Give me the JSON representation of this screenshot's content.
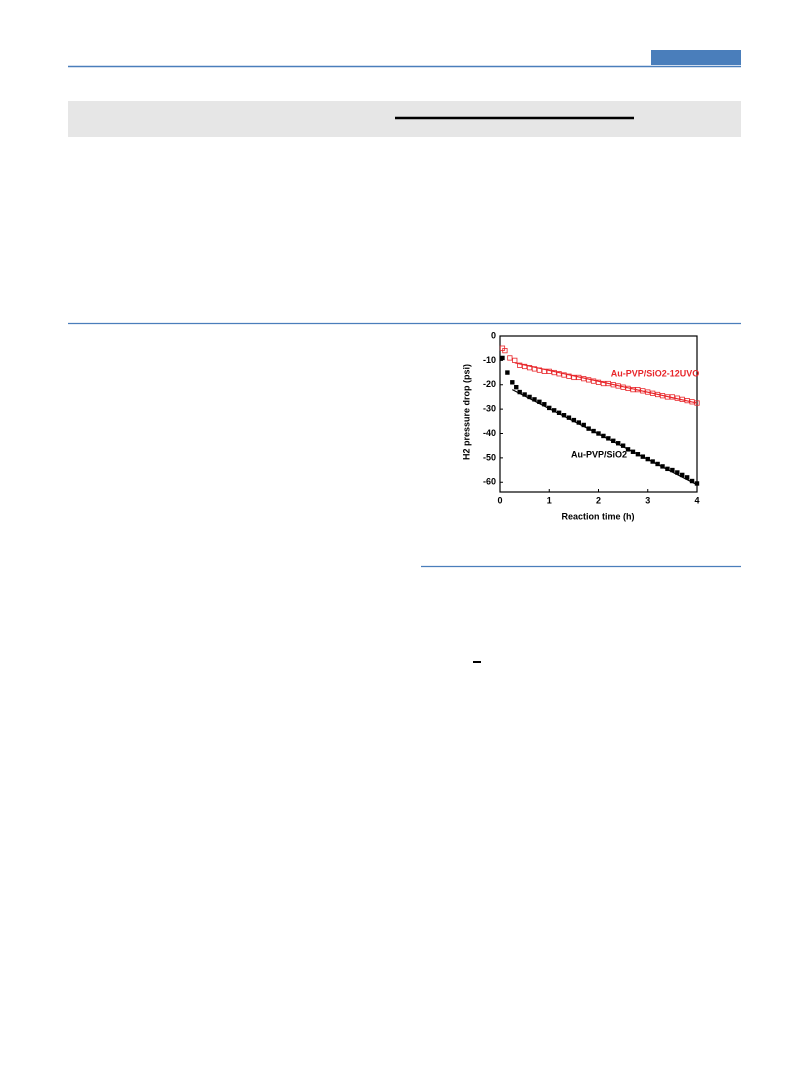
{
  "chart_data": {
    "type": "scatter",
    "xlabel": "Reaction time (h)",
    "ylabel": "H2 pressure drop (psi)",
    "xlim": [
      0,
      4
    ],
    "xticks": [
      0,
      1,
      2,
      3,
      4
    ],
    "ylim": [
      -64,
      0
    ],
    "yticks": [
      0,
      -10,
      -20,
      -30,
      -40,
      -50,
      -60
    ],
    "series": [
      {
        "name": "Au-PVP/SiO2-12UVO",
        "color": "#e8262a",
        "marker": "open-square",
        "x": [
          0.05,
          0.1,
          0.2,
          0.3,
          0.4,
          0.5,
          0.6,
          0.7,
          0.8,
          0.9,
          1.0,
          1.1,
          1.2,
          1.3,
          1.4,
          1.5,
          1.6,
          1.7,
          1.8,
          1.9,
          2.0,
          2.1,
          2.2,
          2.3,
          2.4,
          2.5,
          2.6,
          2.7,
          2.8,
          2.9,
          3.0,
          3.1,
          3.2,
          3.3,
          3.4,
          3.5,
          3.6,
          3.7,
          3.8,
          3.9,
          4.0
        ],
        "values": [
          -5,
          -6,
          -9,
          -10,
          -12,
          -12.5,
          -13,
          -13.5,
          -14,
          -14.5,
          -14.5,
          -15,
          -15.5,
          -16,
          -16.5,
          -17,
          -17,
          -17.5,
          -18,
          -18.5,
          -19,
          -19.5,
          -19.5,
          -20,
          -20.5,
          -21,
          -21.5,
          -22,
          -22,
          -22.5,
          -23,
          -23.5,
          -24,
          -24.5,
          -25,
          -25,
          -25.5,
          -26,
          -26.5,
          -27,
          -27.5
        ],
        "fit_x": [
          0.3,
          4.0
        ],
        "fit_values": [
          -11,
          -27.5
        ]
      },
      {
        "name": "Au-PVP/SiO2",
        "color": "#000000",
        "marker": "filled-square",
        "x": [
          0.05,
          0.15,
          0.25,
          0.33,
          0.4,
          0.5,
          0.6,
          0.7,
          0.8,
          0.9,
          1.0,
          1.1,
          1.2,
          1.3,
          1.4,
          1.5,
          1.6,
          1.7,
          1.8,
          1.9,
          2.0,
          2.1,
          2.2,
          2.3,
          2.4,
          2.5,
          2.6,
          2.7,
          2.8,
          2.9,
          3.0,
          3.1,
          3.2,
          3.3,
          3.4,
          3.5,
          3.6,
          3.7,
          3.8,
          3.9,
          4.0
        ],
        "values": [
          -9,
          -15,
          -19,
          -21,
          -23,
          -24,
          -25,
          -26,
          -27,
          -28,
          -29.5,
          -30.5,
          -31.5,
          -32.5,
          -33.5,
          -34.5,
          -35.5,
          -36.5,
          -38,
          -39,
          -40,
          -41,
          -42,
          -43,
          -44,
          -45,
          -46.5,
          -47.5,
          -48.5,
          -49.5,
          -50.5,
          -51.5,
          -52.5,
          -53.5,
          -54.5,
          -55,
          -56,
          -57,
          -58,
          -59.5,
          -60.5
        ],
        "fit_x": [
          0.25,
          4.0
        ],
        "fit_values": [
          -22,
          -61
        ]
      }
    ]
  }
}
